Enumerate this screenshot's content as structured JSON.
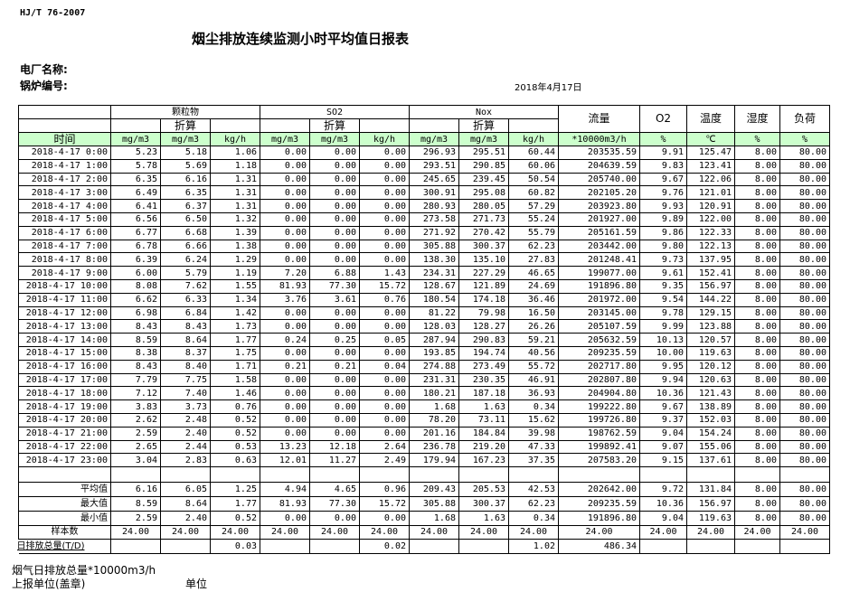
{
  "standard": "HJ/T  76-2007",
  "title": "烟尘排放连续监测小时平均值日报表",
  "plant_label": "电厂名称:",
  "boiler_label": "锅炉编号:",
  "date": "2018年4月17日",
  "header": {
    "groups": [
      "颗粒物",
      "SO2",
      "Nox"
    ],
    "converted": "折算",
    "flow": "流量",
    "o2": "O2",
    "temp": "温度",
    "humidity": "湿度",
    "load": "负荷",
    "time": "时间",
    "units": [
      "mg/m3",
      "mg/m3",
      "kg/h",
      "mg/m3",
      "mg/m3",
      "kg/h",
      "mg/m3",
      "mg/m3",
      "kg/h",
      "*10000m3/h",
      "%",
      "℃",
      "%",
      "%"
    ]
  },
  "rows": [
    [
      "2018-4-17 0:00",
      "5.23",
      "5.18",
      "1.06",
      "0.00",
      "0.00",
      "0.00",
      "296.93",
      "295.51",
      "60.44",
      "203535.59",
      "9.91",
      "125.47",
      "8.00",
      "80.00"
    ],
    [
      "2018-4-17 1:00",
      "5.78",
      "5.69",
      "1.18",
      "0.00",
      "0.00",
      "0.00",
      "293.51",
      "290.85",
      "60.06",
      "204639.59",
      "9.83",
      "123.41",
      "8.00",
      "80.00"
    ],
    [
      "2018-4-17 2:00",
      "6.35",
      "6.16",
      "1.31",
      "0.00",
      "0.00",
      "0.00",
      "245.65",
      "239.45",
      "50.54",
      "205740.00",
      "9.67",
      "122.06",
      "8.00",
      "80.00"
    ],
    [
      "2018-4-17 3:00",
      "6.49",
      "6.35",
      "1.31",
      "0.00",
      "0.00",
      "0.00",
      "300.91",
      "295.08",
      "60.82",
      "202105.20",
      "9.76",
      "121.01",
      "8.00",
      "80.00"
    ],
    [
      "2018-4-17 4:00",
      "6.41",
      "6.37",
      "1.31",
      "0.00",
      "0.00",
      "0.00",
      "280.93",
      "280.05",
      "57.29",
      "203923.80",
      "9.93",
      "120.91",
      "8.00",
      "80.00"
    ],
    [
      "2018-4-17 5:00",
      "6.56",
      "6.50",
      "1.32",
      "0.00",
      "0.00",
      "0.00",
      "273.58",
      "271.73",
      "55.24",
      "201927.00",
      "9.89",
      "122.00",
      "8.00",
      "80.00"
    ],
    [
      "2018-4-17 6:00",
      "6.77",
      "6.68",
      "1.39",
      "0.00",
      "0.00",
      "0.00",
      "271.92",
      "270.42",
      "55.79",
      "205161.59",
      "9.86",
      "122.33",
      "8.00",
      "80.00"
    ],
    [
      "2018-4-17 7:00",
      "6.78",
      "6.66",
      "1.38",
      "0.00",
      "0.00",
      "0.00",
      "305.88",
      "300.37",
      "62.23",
      "203442.00",
      "9.80",
      "122.13",
      "8.00",
      "80.00"
    ],
    [
      "2018-4-17 8:00",
      "6.39",
      "6.24",
      "1.29",
      "0.00",
      "0.00",
      "0.00",
      "138.30",
      "135.10",
      "27.83",
      "201248.41",
      "9.73",
      "137.95",
      "8.00",
      "80.00"
    ],
    [
      "2018-4-17 9:00",
      "6.00",
      "5.79",
      "1.19",
      "7.20",
      "6.88",
      "1.43",
      "234.31",
      "227.29",
      "46.65",
      "199077.00",
      "9.61",
      "152.41",
      "8.00",
      "80.00"
    ],
    [
      "2018-4-17 10:00",
      "8.08",
      "7.62",
      "1.55",
      "81.93",
      "77.30",
      "15.72",
      "128.67",
      "121.89",
      "24.69",
      "191896.80",
      "9.35",
      "156.97",
      "8.00",
      "80.00"
    ],
    [
      "2018-4-17 11:00",
      "6.62",
      "6.33",
      "1.34",
      "3.76",
      "3.61",
      "0.76",
      "180.54",
      "174.18",
      "36.46",
      "201972.00",
      "9.54",
      "144.22",
      "8.00",
      "80.00"
    ],
    [
      "2018-4-17 12:00",
      "6.98",
      "6.84",
      "1.42",
      "0.00",
      "0.00",
      "0.00",
      "81.22",
      "79.98",
      "16.50",
      "203145.00",
      "9.78",
      "129.15",
      "8.00",
      "80.00"
    ],
    [
      "2018-4-17 13:00",
      "8.43",
      "8.43",
      "1.73",
      "0.00",
      "0.00",
      "0.00",
      "128.03",
      "128.27",
      "26.26",
      "205107.59",
      "9.99",
      "123.88",
      "8.00",
      "80.00"
    ],
    [
      "2018-4-17 14:00",
      "8.59",
      "8.64",
      "1.77",
      "0.24",
      "0.25",
      "0.05",
      "287.94",
      "290.83",
      "59.21",
      "205632.59",
      "10.13",
      "120.57",
      "8.00",
      "80.00"
    ],
    [
      "2018-4-17 15:00",
      "8.38",
      "8.37",
      "1.75",
      "0.00",
      "0.00",
      "0.00",
      "193.85",
      "194.74",
      "40.56",
      "209235.59",
      "10.00",
      "119.63",
      "8.00",
      "80.00"
    ],
    [
      "2018-4-17 16:00",
      "8.43",
      "8.40",
      "1.71",
      "0.21",
      "0.21",
      "0.04",
      "274.88",
      "273.49",
      "55.72",
      "202717.80",
      "9.95",
      "120.12",
      "8.00",
      "80.00"
    ],
    [
      "2018-4-17 17:00",
      "7.79",
      "7.75",
      "1.58",
      "0.00",
      "0.00",
      "0.00",
      "231.31",
      "230.35",
      "46.91",
      "202807.80",
      "9.94",
      "120.63",
      "8.00",
      "80.00"
    ],
    [
      "2018-4-17 18:00",
      "7.12",
      "7.40",
      "1.46",
      "0.00",
      "0.00",
      "0.00",
      "180.21",
      "187.18",
      "36.93",
      "204904.80",
      "10.36",
      "121.43",
      "8.00",
      "80.00"
    ],
    [
      "2018-4-17 19:00",
      "3.83",
      "3.73",
      "0.76",
      "0.00",
      "0.00",
      "0.00",
      "1.68",
      "1.63",
      "0.34",
      "199222.80",
      "9.67",
      "138.89",
      "8.00",
      "80.00"
    ],
    [
      "2018-4-17 20:00",
      "2.62",
      "2.48",
      "0.52",
      "0.00",
      "0.00",
      "0.00",
      "78.20",
      "73.11",
      "15.62",
      "199726.80",
      "9.37",
      "152.03",
      "8.00",
      "80.00"
    ],
    [
      "2018-4-17 21:00",
      "2.59",
      "2.40",
      "0.52",
      "0.00",
      "0.00",
      "0.00",
      "201.16",
      "184.84",
      "39.98",
      "198762.59",
      "9.04",
      "154.24",
      "8.00",
      "80.00"
    ],
    [
      "2018-4-17 22:00",
      "2.65",
      "2.44",
      "0.53",
      "13.23",
      "12.18",
      "2.64",
      "236.78",
      "219.20",
      "47.33",
      "199892.41",
      "9.07",
      "155.06",
      "8.00",
      "80.00"
    ],
    [
      "2018-4-17 23:00",
      "3.04",
      "2.83",
      "0.63",
      "12.01",
      "11.27",
      "2.49",
      "179.94",
      "167.23",
      "37.35",
      "207583.20",
      "9.15",
      "137.61",
      "8.00",
      "80.00"
    ]
  ],
  "summary": [
    [
      "平均值",
      "6.16",
      "6.05",
      "1.25",
      "4.94",
      "4.65",
      "0.96",
      "209.43",
      "205.53",
      "42.53",
      "202642.00",
      "9.72",
      "131.84",
      "8.00",
      "80.00"
    ],
    [
      "最大值",
      "8.59",
      "8.64",
      "1.77",
      "81.93",
      "77.30",
      "15.72",
      "305.88",
      "300.37",
      "62.23",
      "209235.59",
      "10.36",
      "156.97",
      "8.00",
      "80.00"
    ],
    [
      "最小值",
      "2.59",
      "2.40",
      "0.52",
      "0.00",
      "0.00",
      "0.00",
      "1.68",
      "1.63",
      "0.34",
      "191896.80",
      "9.04",
      "119.63",
      "8.00",
      "80.00"
    ],
    [
      "样本数",
      "24.00",
      "24.00",
      "24.00",
      "24.00",
      "24.00",
      "24.00",
      "24.00",
      "24.00",
      "24.00",
      "24.00",
      "24.00",
      "24.00",
      "24.00",
      "24.00"
    ]
  ],
  "daily_total": [
    "日排放总量(T/D)",
    "",
    "",
    "0.03",
    "",
    "",
    "0.02",
    "",
    "",
    "1.02",
    "486.34",
    "",
    "",
    "",
    ""
  ],
  "footer": {
    "flue_gas_total": "烟气日排放总量*10000m3/h",
    "reporting_unit": "上报单位(盖章)",
    "unit": "单位"
  }
}
